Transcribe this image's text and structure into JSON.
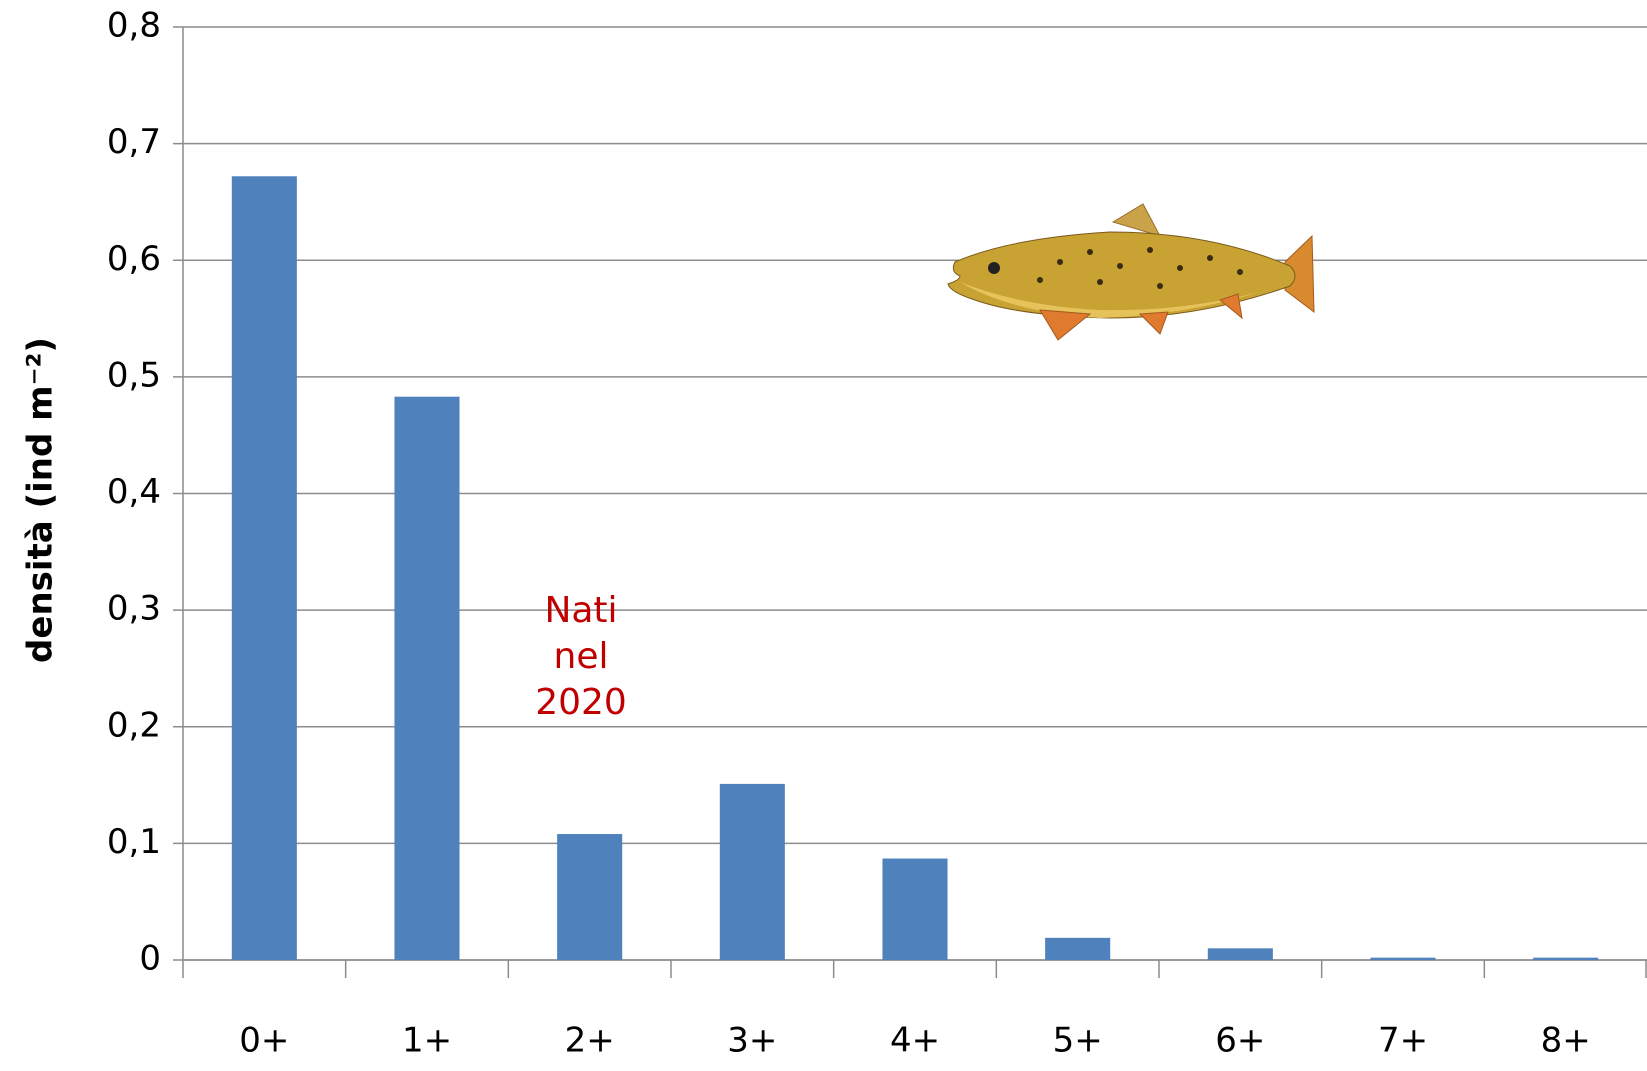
{
  "chart_data": {
    "type": "bar",
    "y_label": "densità (ind m⁻²)",
    "annotation": [
      "Nati",
      "nel",
      "2020"
    ],
    "categories": [
      "0+",
      "1+",
      "2+",
      "3+",
      "4+",
      "5+",
      "6+",
      "7+",
      "8+"
    ],
    "values": [
      0.672,
      0.483,
      0.108,
      0.151,
      0.087,
      0.019,
      0.01,
      0.002,
      0.002
    ],
    "color": "#4f81bd",
    "ylim": [
      0,
      0.8
    ],
    "yticks": [
      0,
      {
        "value": 0.1,
        "label": "0,1"
      },
      {
        "value": 0.2,
        "label": "0,2"
      },
      {
        "value": 0.3,
        "label": "0,3"
      },
      {
        "value": 0.4,
        "label": "0,4"
      },
      {
        "value": 0.5,
        "label": "0,5"
      },
      {
        "value": 0.6,
        "label": "0,6"
      },
      {
        "value": 0.7,
        "label": "0,7"
      },
      {
        "value": 0.8,
        "label": "0,8"
      }
    ],
    "grid": true
  }
}
